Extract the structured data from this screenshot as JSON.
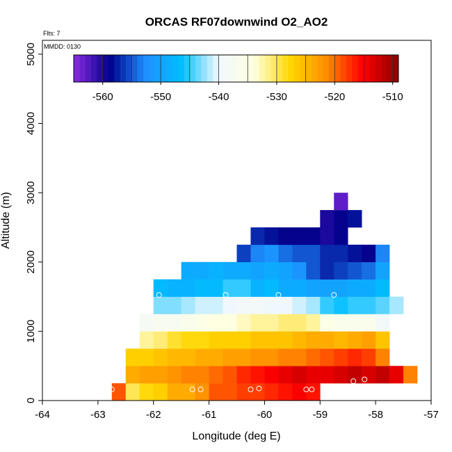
{
  "chart_data": {
    "type": "heatmap",
    "title": "ORCAS RF07downwind O2_AO2",
    "annotations": {
      "flights": "Flts: 7",
      "mmdd": "MMDD: 0130"
    },
    "xlabel": "Longitude (deg E)",
    "ylabel": "Altitude (m)",
    "xlim": [
      -64,
      -57
    ],
    "ylim": [
      0,
      5200
    ],
    "x_ticks": [
      -64,
      -63,
      -62,
      -61,
      -60,
      -59,
      -58,
      -57
    ],
    "y_ticks": [
      0,
      1000,
      2000,
      3000,
      4000,
      5000
    ],
    "colorbar": {
      "range": [
        -565,
        -509
      ],
      "ticks": [
        -560,
        -550,
        -540,
        -530,
        -520,
        -510
      ],
      "stops": [
        "#8a2be2",
        "#00008b",
        "#1e90ff",
        "#00bfff",
        "#f0f8ff",
        "#ffffe0",
        "#ffd700",
        "#ff8c00",
        "#ff0000",
        "#8b0000"
      ]
    },
    "cell_size": {
      "lon": 0.25,
      "alt": 250
    },
    "grid_on": false,
    "rows": [
      {
        "alt": 0,
        "lon_start": -62.75,
        "values": [
          -519,
          -530,
          -528,
          -527,
          -524,
          -524,
          -522,
          -519,
          -519,
          -518,
          -518,
          -517,
          -516,
          -515,
          -516
        ]
      },
      {
        "alt": 250,
        "lon_start": -62.5,
        "values": [
          -524,
          -523,
          -523,
          -522,
          -521,
          -521,
          -520,
          -519,
          -517,
          -516,
          -515,
          -514,
          -513,
          -514,
          -514,
          -513,
          -512,
          -513,
          -512,
          -514,
          -521
        ]
      },
      {
        "alt": 500,
        "lon_start": -62.5,
        "values": [
          -527,
          -527,
          -526,
          -525,
          -525,
          -524,
          -524,
          -523,
          -523,
          -522,
          -522,
          -521,
          -521,
          -520,
          -519,
          -518,
          -517,
          -518,
          -521
        ]
      },
      {
        "alt": 750,
        "lon_start": -62.25,
        "values": [
          -532,
          -531,
          -529,
          -528,
          -528,
          -527,
          -527,
          -527,
          -526,
          -526,
          -526,
          -525,
          -524,
          -524,
          -525,
          -524,
          -523,
          -526
        ]
      },
      {
        "alt": 1000,
        "lon_start": -62.25,
        "values": [
          -538,
          -537,
          -537,
          -536,
          -535,
          -534,
          -534,
          -533,
          -532,
          -532,
          -531,
          -531,
          -532,
          -535,
          -536,
          -536,
          -536,
          -539
        ]
      },
      {
        "alt": 1250,
        "lon_start": -62,
        "values": [
          -543,
          -543,
          -542,
          -541,
          -541,
          -540,
          -539,
          -539,
          -540,
          -540,
          -541,
          -542,
          -545,
          -546,
          -545,
          -545,
          -544,
          -542
        ]
      },
      {
        "alt": 1500,
        "lon_start": -62,
        "values": [
          -547,
          -548,
          -548,
          -547,
          -547,
          -545,
          -545,
          -548,
          -547,
          -549,
          -549,
          -550,
          -550,
          -550,
          -549,
          -549,
          -547
        ]
      },
      {
        "alt": 1750,
        "lon_start": -61.5,
        "values": [
          -549,
          -549,
          -548,
          -549,
          -549,
          -550,
          -549,
          -550,
          -552,
          -555,
          -557,
          -556,
          -555,
          -554,
          -550
        ]
      },
      {
        "alt": 2000,
        "lon_start": -60.5,
        "values": [
          -556,
          -553,
          -552,
          -554,
          -555,
          -555,
          -557,
          -557,
          -558,
          -559,
          -553
        ]
      },
      {
        "alt": 2250,
        "lon_start": -60.25,
        "values": [
          -557,
          -558,
          -559,
          -559,
          -559,
          -560,
          -559
        ]
      },
      {
        "alt": 2500,
        "lon_start": -59,
        "values": [
          -560,
          -559,
          -558
        ]
      },
      {
        "alt": 2750,
        "lon_start": -58.75,
        "values": [
          -563
        ]
      }
    ],
    "sample_points": [
      {
        "lon": -62.75,
        "alt": 160
      },
      {
        "lon": -61.3,
        "alt": 160
      },
      {
        "lon": -61.15,
        "alt": 160
      },
      {
        "lon": -60.25,
        "alt": 160
      },
      {
        "lon": -60.1,
        "alt": 175
      },
      {
        "lon": -59.25,
        "alt": 160
      },
      {
        "lon": -59.15,
        "alt": 160
      },
      {
        "lon": -58.4,
        "alt": 280
      },
      {
        "lon": -58.2,
        "alt": 305
      },
      {
        "lon": -61.9,
        "alt": 1525
      },
      {
        "lon": -60.7,
        "alt": 1525
      },
      {
        "lon": -59.75,
        "alt": 1525
      },
      {
        "lon": -58.75,
        "alt": 1525
      },
      {
        "lon": -58.45,
        "alt": 2970
      }
    ]
  }
}
